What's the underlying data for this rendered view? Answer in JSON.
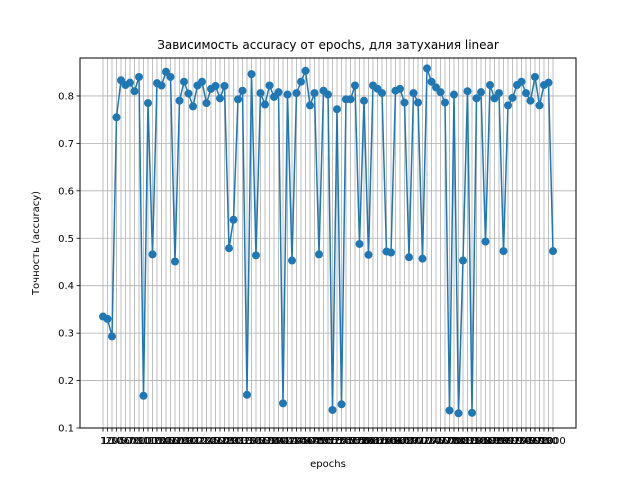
{
  "chart_data": {
    "type": "line",
    "title": "Зависимость accuracy от epochs, для затухания linear",
    "xlabel": "epochs",
    "ylabel": "Точность (accuracy)",
    "ylim": [
      0.1,
      0.88
    ],
    "y_ticks": [
      0.1,
      0.2,
      0.3,
      0.4,
      0.5,
      0.6,
      0.7,
      0.8
    ],
    "y_tick_labels": [
      "0.1",
      "0.2",
      "0.3",
      "0.4",
      "0.5",
      "0.6",
      "0.7",
      "0.8"
    ],
    "grid": true,
    "marker": "circle",
    "color": "#1f77b4",
    "x": [
      1,
      10,
      20,
      30,
      40,
      50,
      60,
      70,
      80,
      90,
      100,
      110,
      120,
      130,
      140,
      150,
      160,
      170,
      180,
      190,
      200,
      210,
      220,
      230,
      240,
      250,
      260,
      270,
      280,
      290,
      300,
      310,
      320,
      330,
      340,
      350,
      360,
      370,
      380,
      390,
      400,
      410,
      420,
      430,
      440,
      450,
      460,
      470,
      480,
      490,
      500,
      510,
      520,
      530,
      540,
      550,
      560,
      570,
      580,
      590,
      600,
      610,
      620,
      630,
      640,
      650,
      660,
      670,
      680,
      690,
      700,
      710,
      720,
      730,
      740,
      750,
      760,
      770,
      780,
      790,
      800,
      810,
      820,
      830,
      840,
      850,
      860,
      870,
      880,
      890,
      900,
      910,
      920,
      930,
      940,
      950,
      960,
      970,
      980,
      990,
      1000
    ],
    "x_tick_labels": [
      "1",
      "10",
      "20",
      "30",
      "40",
      "50",
      "60",
      "70",
      "80",
      "90",
      "100",
      "110",
      "120",
      "130",
      "140",
      "150",
      "160",
      "170",
      "180",
      "190",
      "200",
      "210",
      "220",
      "230",
      "240",
      "250",
      "260",
      "270",
      "280",
      "290",
      "300",
      "310",
      "320",
      "330",
      "340",
      "350",
      "360",
      "370",
      "380",
      "390",
      "400",
      "410",
      "420",
      "430",
      "440",
      "450",
      "460",
      "470",
      "480",
      "490",
      "500",
      "510",
      "520",
      "530",
      "540",
      "550",
      "560",
      "570",
      "580",
      "590",
      "600",
      "610",
      "620",
      "630",
      "640",
      "650",
      "660",
      "670",
      "680",
      "690",
      "700",
      "710",
      "720",
      "730",
      "740",
      "750",
      "760",
      "770",
      "780",
      "790",
      "800",
      "810",
      "820",
      "830",
      "840",
      "850",
      "860",
      "870",
      "880",
      "890",
      "900",
      "910",
      "920",
      "930",
      "940",
      "950",
      "960",
      "970",
      "980",
      "990",
      "1000"
    ],
    "series": [
      {
        "values": [
          0.335,
          0.33,
          0.293,
          0.755,
          0.833,
          0.823,
          0.828,
          0.81,
          0.84,
          0.168,
          0.785,
          0.466,
          0.827,
          0.822,
          0.851,
          0.84,
          0.451,
          0.79,
          0.83,
          0.805,
          0.778,
          0.822,
          0.83,
          0.785,
          0.815,
          0.821,
          0.795,
          0.821,
          0.479,
          0.539,
          0.793,
          0.811,
          0.17,
          0.846,
          0.464,
          0.806,
          0.782,
          0.822,
          0.798,
          0.808,
          0.152,
          0.803,
          0.453,
          0.806,
          0.83,
          0.853,
          0.78,
          0.806,
          0.466,
          0.811,
          0.803,
          0.138,
          0.772,
          0.15,
          0.793,
          0.793,
          0.822,
          0.488,
          0.79,
          0.465,
          0.822,
          0.815,
          0.806,
          0.472,
          0.47,
          0.811,
          0.815,
          0.786,
          0.46,
          0.806,
          0.786,
          0.457,
          0.858,
          0.83,
          0.818,
          0.808,
          0.786,
          0.137,
          0.803,
          0.131,
          0.453,
          0.81,
          0.132,
          0.795,
          0.808,
          0.493,
          0.823,
          0.795,
          0.806,
          0.473,
          0.78,
          0.796,
          0.823,
          0.83,
          0.806,
          0.79,
          0.84,
          0.78,
          0.823,
          0.828,
          0.473
        ]
      }
    ]
  }
}
